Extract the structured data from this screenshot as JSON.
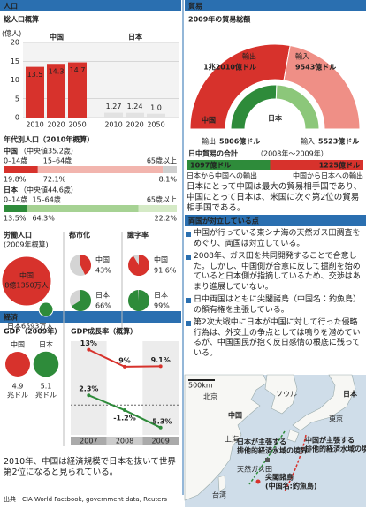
{
  "population": {
    "header": "人口",
    "total": {
      "title": "総人口概算",
      "unit": "(億人)",
      "ylim": [
        0,
        20
      ],
      "yticks": [
        0,
        5,
        10,
        15,
        20
      ],
      "groups": [
        {
          "name": "中国",
          "color": "#d7322c",
          "categories": [
            "2010",
            "2020",
            "2050"
          ],
          "values": [
            13.5,
            14.3,
            14.7
          ]
        },
        {
          "name": "日本",
          "color": "#e2e2e2",
          "categories": [
            "2010",
            "2020",
            "2050"
          ],
          "values": [
            1.27,
            1.24,
            1.0
          ],
          "value_labels": [
            "1.27",
            "1.24",
            "1.0"
          ]
        }
      ]
    },
    "age": {
      "title": "年代別人口（2010年概算）",
      "groups": [
        {
          "name": "中国",
          "median": "（中央値35.2歳）",
          "segments": [
            "0–14歳",
            "15–64歳",
            "65歳以上"
          ],
          "colors": [
            "#d7322c",
            "#f2b5ae",
            "#cfcfcf"
          ],
          "values": [
            19.8,
            72.1,
            8.1
          ],
          "value_labels": [
            "19.8%",
            "72.1%",
            "8.1%"
          ]
        },
        {
          "name": "日本",
          "median": "（中央値44.6歳）",
          "segments": [
            "0–14歳",
            "15–64歳",
            "65歳以上"
          ],
          "colors": [
            "#2e8b3a",
            "#a6d293",
            "#d5eac6"
          ],
          "values": [
            13.5,
            64.3,
            22.2
          ],
          "value_labels": [
            "13.5%",
            "64.3%",
            "22.2%"
          ]
        }
      ]
    },
    "labor": {
      "title": "労働人口",
      "subtitle": "(2009年概算)",
      "items": [
        {
          "name": "中国",
          "color": "#d7322c",
          "value": 81350,
          "value_label": "8億1350万人"
        },
        {
          "name": "日本",
          "color": "#2e8b3a",
          "value": 6593,
          "value_label": "6593万人"
        }
      ]
    },
    "urbanization": {
      "title": "都市化",
      "items": [
        {
          "name": "中国",
          "color": "#d7322c",
          "value": 43,
          "value_label": "43%"
        },
        {
          "name": "日本",
          "color": "#2e8b3a",
          "value": 66,
          "value_label": "66%"
        }
      ]
    },
    "literacy": {
      "title": "識字率",
      "items": [
        {
          "name": "中国",
          "color": "#d7322c",
          "value": 91.6,
          "value_label": "91.6%"
        },
        {
          "name": "日本",
          "color": "#2e8b3a",
          "value": 99,
          "value_label": "99%"
        }
      ]
    }
  },
  "economy": {
    "header": "経済",
    "gdp": {
      "title": "GDP（2009年）",
      "unit": "兆ドル",
      "items": [
        {
          "name": "中国",
          "color": "#d7322c",
          "value": 4.9
        },
        {
          "name": "日本",
          "color": "#2e8b3a",
          "value": 5.1
        }
      ]
    },
    "growth": {
      "title": "GDP成長率（概算）",
      "categories": [
        "2007",
        "2008",
        "2009"
      ],
      "ylim": [
        -7,
        15
      ],
      "series": [
        {
          "color": "#d7322c",
          "values": [
            13,
            9,
            9.1
          ],
          "value_labels": [
            "13%",
            "9%",
            "9.1%"
          ]
        },
        {
          "color": "#2e8b3a",
          "values": [
            2.3,
            -1.2,
            -5.3
          ],
          "value_labels": [
            "2.3%",
            "-1.2%",
            "-5.3%"
          ]
        }
      ]
    },
    "note": "2010年、中国は経済規模で日本を抜いて世界第2位になると見られている。"
  },
  "trade": {
    "header": "貿易",
    "title": "2009年の貿易総額",
    "countries": [
      {
        "name": "中国",
        "colors": [
          "#d7322c",
          "#ef8f86"
        ],
        "flows": [
          {
            "label": "輸出",
            "value": 12010,
            "value_label": "1兆2010億ドル"
          },
          {
            "label": "輸入",
            "value": 9543,
            "value_label": "9543億ドル"
          }
        ]
      },
      {
        "name": "日本",
        "colors": [
          "#2e8b3a",
          "#8cc77a"
        ],
        "flows": [
          {
            "label": "輸出",
            "value": 5806,
            "value_label": "5806億ドル"
          },
          {
            "label": "輸入",
            "value": 5523,
            "value_label": "5523億ドル"
          }
        ]
      }
    ],
    "bilateral": {
      "title": "日中貿易の合計",
      "period": "（2008年～2009年）",
      "items": [
        {
          "label": "日本から中国への輸出",
          "color": "#2e8b3a",
          "value": 1097,
          "value_label": "1097億ドル"
        },
        {
          "label": "中国から日本への輸出",
          "color": "#d7322c",
          "value": 1225,
          "value_label": "1225億ドル"
        }
      ]
    },
    "note": "日本にとって中国は最大の貿易相手国であり、中国にとって日本は、米国に次ぐ第2位の貿易相手国である。"
  },
  "conflict": {
    "header": "両国が対立している点",
    "bullets": [
      "中国が行っている東シナ海の天然ガス田調査をめぐり、両国は対立している。",
      "2008年、ガス田を共同開発することで合意した。しかし、中国側が合意に反して掘削を始めていると日本側が指摘しているため、交渉はあまり進展していない。",
      "日中両国はともに尖閣諸島（中国名：釣魚島）の領有権を主張している。",
      "第2次大戦中に日本が中国に対して行った侵略行為は、外交上の争点としては鳴りを潜めているが、中国国民が抱く反日感情の根底に残っている。"
    ],
    "map": {
      "scale": "500km",
      "labels": [
        "北京",
        "中国",
        "ソウル",
        "日本",
        "東京",
        "上海",
        "天然ガス田",
        "台湾"
      ],
      "claims": [
        [
          "日本が主張する",
          "排他的経済水域の境界"
        ],
        [
          "中国が主張する",
          "排他的経済水域の境界"
        ]
      ],
      "senkaku": [
        "尖閣諸島",
        "(中国名:釣魚島)"
      ]
    }
  },
  "source": "出典：CIA World Factbook, government data, Reuters"
}
